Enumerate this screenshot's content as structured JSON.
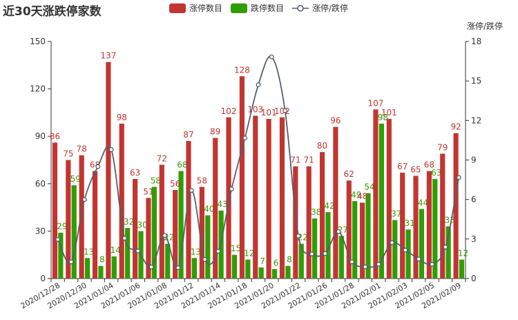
{
  "chart_data": {
    "type": "bar",
    "title": "近30天涨跌停家数",
    "categories": [
      "2020/12/28",
      "2020/12/29",
      "2020/12/30",
      "2020/12/31",
      "2021/01/04",
      "2021/01/05",
      "2021/01/06",
      "2021/01/07",
      "2021/01/08",
      "2021/01/11",
      "2021/01/12",
      "2021/01/13",
      "2021/01/14",
      "2021/01/15",
      "2021/01/18",
      "2021/01/19",
      "2021/01/20",
      "2021/01/21",
      "2021/01/22",
      "2021/01/25",
      "2021/01/26",
      "2021/01/27",
      "2021/01/28",
      "2021/01/29",
      "2021/02/01",
      "2021/02/02",
      "2021/02/03",
      "2021/02/04",
      "2021/02/05",
      "2021/02/08",
      "2021/02/09"
    ],
    "x_tick_labels": [
      "2020/12/28",
      "2020/12/30",
      "2021/01/04",
      "2021/01/06",
      "2021/01/08",
      "2021/01/12",
      "2021/01/14",
      "2021/01/18",
      "2021/01/20",
      "2021/01/22",
      "2021/01/26",
      "2021/01/28",
      "2021/02/01",
      "2021/02/03",
      "2021/02/05",
      "2021/02/09"
    ],
    "series": [
      {
        "name": "涨停数目",
        "color": "#c23531",
        "values": [
          86,
          75,
          78,
          68,
          137,
          98,
          63,
          51,
          72,
          56,
          87,
          58,
          89,
          102,
          128,
          103,
          101,
          102,
          71,
          71,
          80,
          96,
          62,
          48,
          107,
          101,
          67,
          65,
          68,
          79,
          92
        ]
      },
      {
        "name": "跌停数目",
        "color": "#2f9e00",
        "values": [
          29,
          59,
          13,
          8,
          14,
          32,
          30,
          58,
          22,
          68,
          13,
          40,
          43,
          15,
          12,
          7,
          6,
          8,
          22,
          38,
          42,
          27,
          49,
          54,
          98,
          37,
          31,
          44,
          63,
          33,
          12
        ]
      },
      {
        "name": "涨停/跌停",
        "color": "#555f6b",
        "axis": "right",
        "values": [
          2.97,
          1.27,
          6.0,
          8.5,
          9.79,
          3.06,
          2.1,
          0.88,
          3.27,
          0.82,
          6.69,
          1.45,
          2.07,
          6.8,
          10.67,
          14.71,
          16.83,
          12.75,
          3.23,
          1.87,
          1.9,
          3.56,
          1.27,
          0.89,
          1.09,
          2.73,
          2.16,
          1.48,
          1.08,
          2.39,
          7.67
        ]
      }
    ],
    "ylim": [
      0,
      150
    ],
    "yticks": [
      "0",
      "30",
      "60",
      "90",
      "120",
      "150"
    ],
    "y2lim": [
      0,
      18
    ],
    "y2ticks": [
      "0",
      "3",
      "6",
      "9",
      "12",
      "15",
      "18"
    ],
    "y2label": "涨停/跌停",
    "legend_position": "top",
    "grid": false
  }
}
